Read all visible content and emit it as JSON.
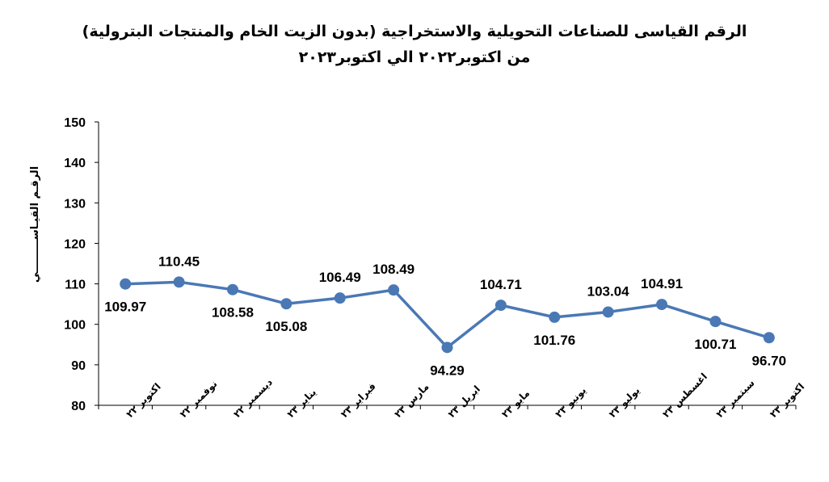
{
  "chart_data": {
    "type": "line",
    "title": "الرقم القياسى للصناعات التحويلية والاستخراجية (بدون الزيت الخام والمنتجات البترولية)",
    "subtitle": "من اكتوبر٢٠٢٢ الي اكتوبر٢٠٢٣",
    "ylabel": "الرقـم القيـاســـــــــي",
    "xlabel": "",
    "ylim": [
      80,
      150
    ],
    "yticks": [
      80,
      90,
      100,
      110,
      120,
      130,
      140,
      150
    ],
    "categories": [
      "اكتوبر ٢٢",
      "نوفمبر ٢٢",
      "ديسمبر ٢٢",
      "يناير ٢٣",
      "فبراير ٢٣",
      "مارس ٢٣",
      "ابريل ٢٣",
      "مايو ٢٣",
      "يونيو ٢٣",
      "يوليو ٢٣",
      "اغسطس ٢٣",
      "سبتمبر ٢٣",
      "اكتوبر ٢٣"
    ],
    "series": [
      {
        "values": [
          109.97,
          110.45,
          108.58,
          105.08,
          106.49,
          108.49,
          94.29,
          104.71,
          101.76,
          103.04,
          104.91,
          100.71,
          96.7
        ],
        "labels": [
          "109.97",
          "110.45",
          "108.58",
          "105.08",
          "106.49",
          "108.49",
          "94.29",
          "104.71",
          "101.76",
          "103.04",
          "104.91",
          "100.71",
          "96.70"
        ],
        "label_positions": [
          "below",
          "above",
          "below",
          "below",
          "above",
          "above",
          "below",
          "above",
          "below",
          "above",
          "above",
          "below",
          "below"
        ],
        "color": "#4a78b5"
      }
    ],
    "grid": false,
    "legend": "none"
  }
}
